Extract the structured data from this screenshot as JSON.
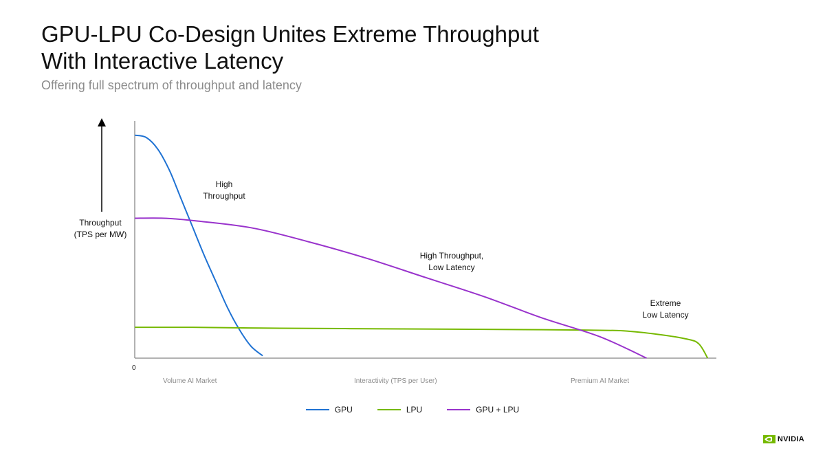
{
  "header": {
    "title": "GPU-LPU Co-Design Unites Extreme Throughput With Interactive Latency",
    "subtitle": "Offering full spectrum of throughput and latency"
  },
  "brand": {
    "name": "NVIDIA",
    "color": "#76b900"
  },
  "chart_data": {
    "type": "line",
    "xlabel": "Interactivity (TPS per User)",
    "ylabel": "Throughput (TPS per MW)",
    "x_origin_label": "0",
    "x_region_labels": [
      "Volume AI Market",
      "Premium AI Market"
    ],
    "axes_tick_values": false,
    "grid": false,
    "legend_position": "bottom-center",
    "xlim": [
      0,
      100
    ],
    "ylim": [
      0,
      100
    ],
    "series": [
      {
        "name": "GPU",
        "color": "#1f72d3",
        "x": [
          0,
          2,
          4,
          6,
          8,
          10,
          12,
          14,
          16,
          18,
          20,
          22
        ],
        "y": [
          94,
          93,
          88,
          79,
          67,
          55,
          43,
          32,
          21,
          12,
          5,
          1
        ]
      },
      {
        "name": "LPU",
        "color": "#76b900",
        "x": [
          0,
          10,
          25,
          40,
          55,
          70,
          78,
          84,
          90,
          95,
          97,
          98.5
        ],
        "y": [
          13,
          13,
          12.6,
          12.4,
          12.2,
          12,
          11.8,
          11.5,
          10,
          8,
          6,
          0
        ]
      },
      {
        "name": "GPU + LPU",
        "color": "#9933cc",
        "x": [
          0,
          5,
          10,
          20,
          30,
          40,
          50,
          60,
          70,
          80,
          88
        ],
        "y": [
          59,
          59,
          58,
          55,
          49,
          42,
          34,
          26,
          17,
          9,
          0
        ]
      }
    ],
    "annotations": [
      {
        "text": "High\nThroughput",
        "x": 15.3,
        "y": 73
      },
      {
        "text": "High Throughput,\nLow Latency",
        "x": 54,
        "y": 41
      },
      {
        "text": "Extreme\nLow Latency",
        "x": 91.5,
        "y": 21
      }
    ]
  }
}
